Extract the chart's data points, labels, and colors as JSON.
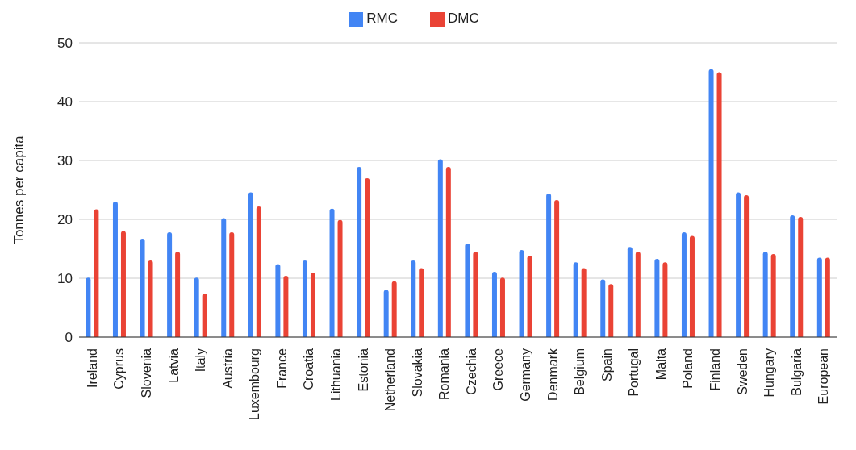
{
  "chart_data": {
    "type": "bar",
    "ylabel": "Tonnes per capita",
    "categories": [
      "Ireland",
      "Cyprus",
      "Slovenia",
      "Latvia",
      "Italy",
      "Austria",
      "Luxembourg",
      "France",
      "Croatia",
      "Lithuania",
      "Estonia",
      "Netherland",
      "Slovakia",
      "Romania",
      "Czechia",
      "Greece",
      "Germany",
      "Denmark",
      "Belgium",
      "Spain",
      "Portugal",
      "Malta",
      "Poland",
      "Finland",
      "Sweden",
      "Hungary",
      "Bulgaria",
      "European"
    ],
    "series": [
      {
        "name": "RMC",
        "color": "#4285f4",
        "values": [
          10.1,
          23.0,
          16.7,
          17.8,
          10.1,
          20.2,
          24.6,
          12.4,
          13.0,
          21.8,
          28.9,
          8.0,
          13.0,
          30.2,
          15.9,
          11.1,
          14.8,
          24.4,
          12.7,
          9.8,
          15.3,
          13.3,
          17.8,
          45.5,
          24.6,
          14.5,
          20.7,
          13.5
        ]
      },
      {
        "name": "DMC",
        "color": "#ea4335",
        "values": [
          21.7,
          18.0,
          13.0,
          14.5,
          7.4,
          17.8,
          22.2,
          10.4,
          10.9,
          19.9,
          27.0,
          9.5,
          11.7,
          28.9,
          14.5,
          10.1,
          13.8,
          23.3,
          11.7,
          9.0,
          14.5,
          12.7,
          17.2,
          45.0,
          24.1,
          14.1,
          20.4,
          13.5
        ]
      }
    ],
    "ylim": [
      0,
      50
    ],
    "yticks": [
      0,
      10,
      20,
      30,
      40,
      50
    ],
    "grid": "y",
    "legend": "top"
  }
}
